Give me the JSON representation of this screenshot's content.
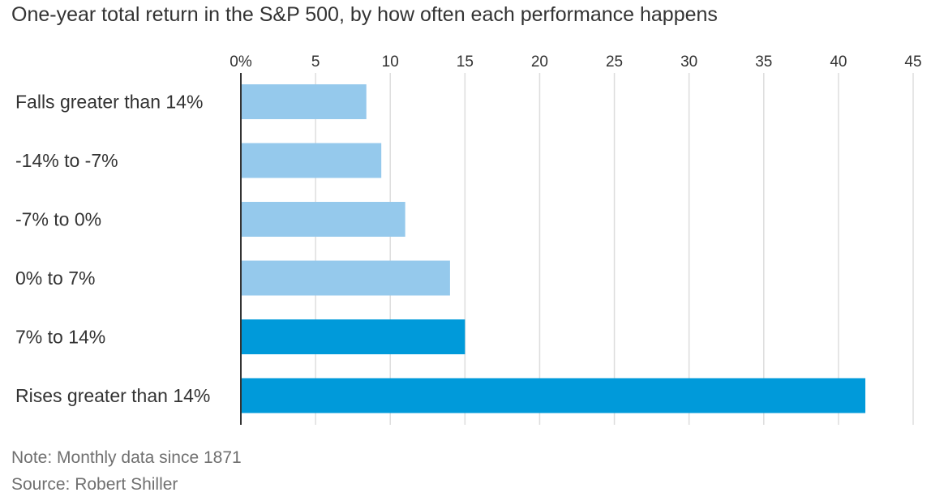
{
  "title": "One-year total return in the S&P 500, by how often each performance happens",
  "note": "Note: Monthly data since 1871",
  "source": "Source: Robert Shiller",
  "colors": {
    "light_bar": "#95c9ec",
    "dark_bar": "#009ada",
    "grid": "#dddddd",
    "axis": "#333333"
  },
  "chart_data": {
    "type": "bar",
    "orientation": "horizontal",
    "title": "One-year total return in the S&P 500, by how often each performance happens",
    "categories": [
      "Falls greater than 14%",
      "-14% to -7%",
      "-7% to 0%",
      "0% to 7%",
      "7% to 14%",
      "Rises greater than 14%"
    ],
    "values": [
      8.4,
      9.4,
      11.0,
      14.0,
      15.0,
      41.8
    ],
    "bar_colors": [
      "#95c9ec",
      "#95c9ec",
      "#95c9ec",
      "#95c9ec",
      "#009ada",
      "#009ada"
    ],
    "xlim": [
      0,
      45
    ],
    "x_ticks": [
      0,
      5,
      10,
      15,
      20,
      25,
      30,
      35,
      40,
      45
    ],
    "x_tick_labels": [
      "0%",
      "5",
      "10",
      "15",
      "20",
      "25",
      "30",
      "35",
      "40",
      "45"
    ],
    "x_axis_position": "top",
    "grid": true,
    "xlabel": "",
    "ylabel": ""
  }
}
